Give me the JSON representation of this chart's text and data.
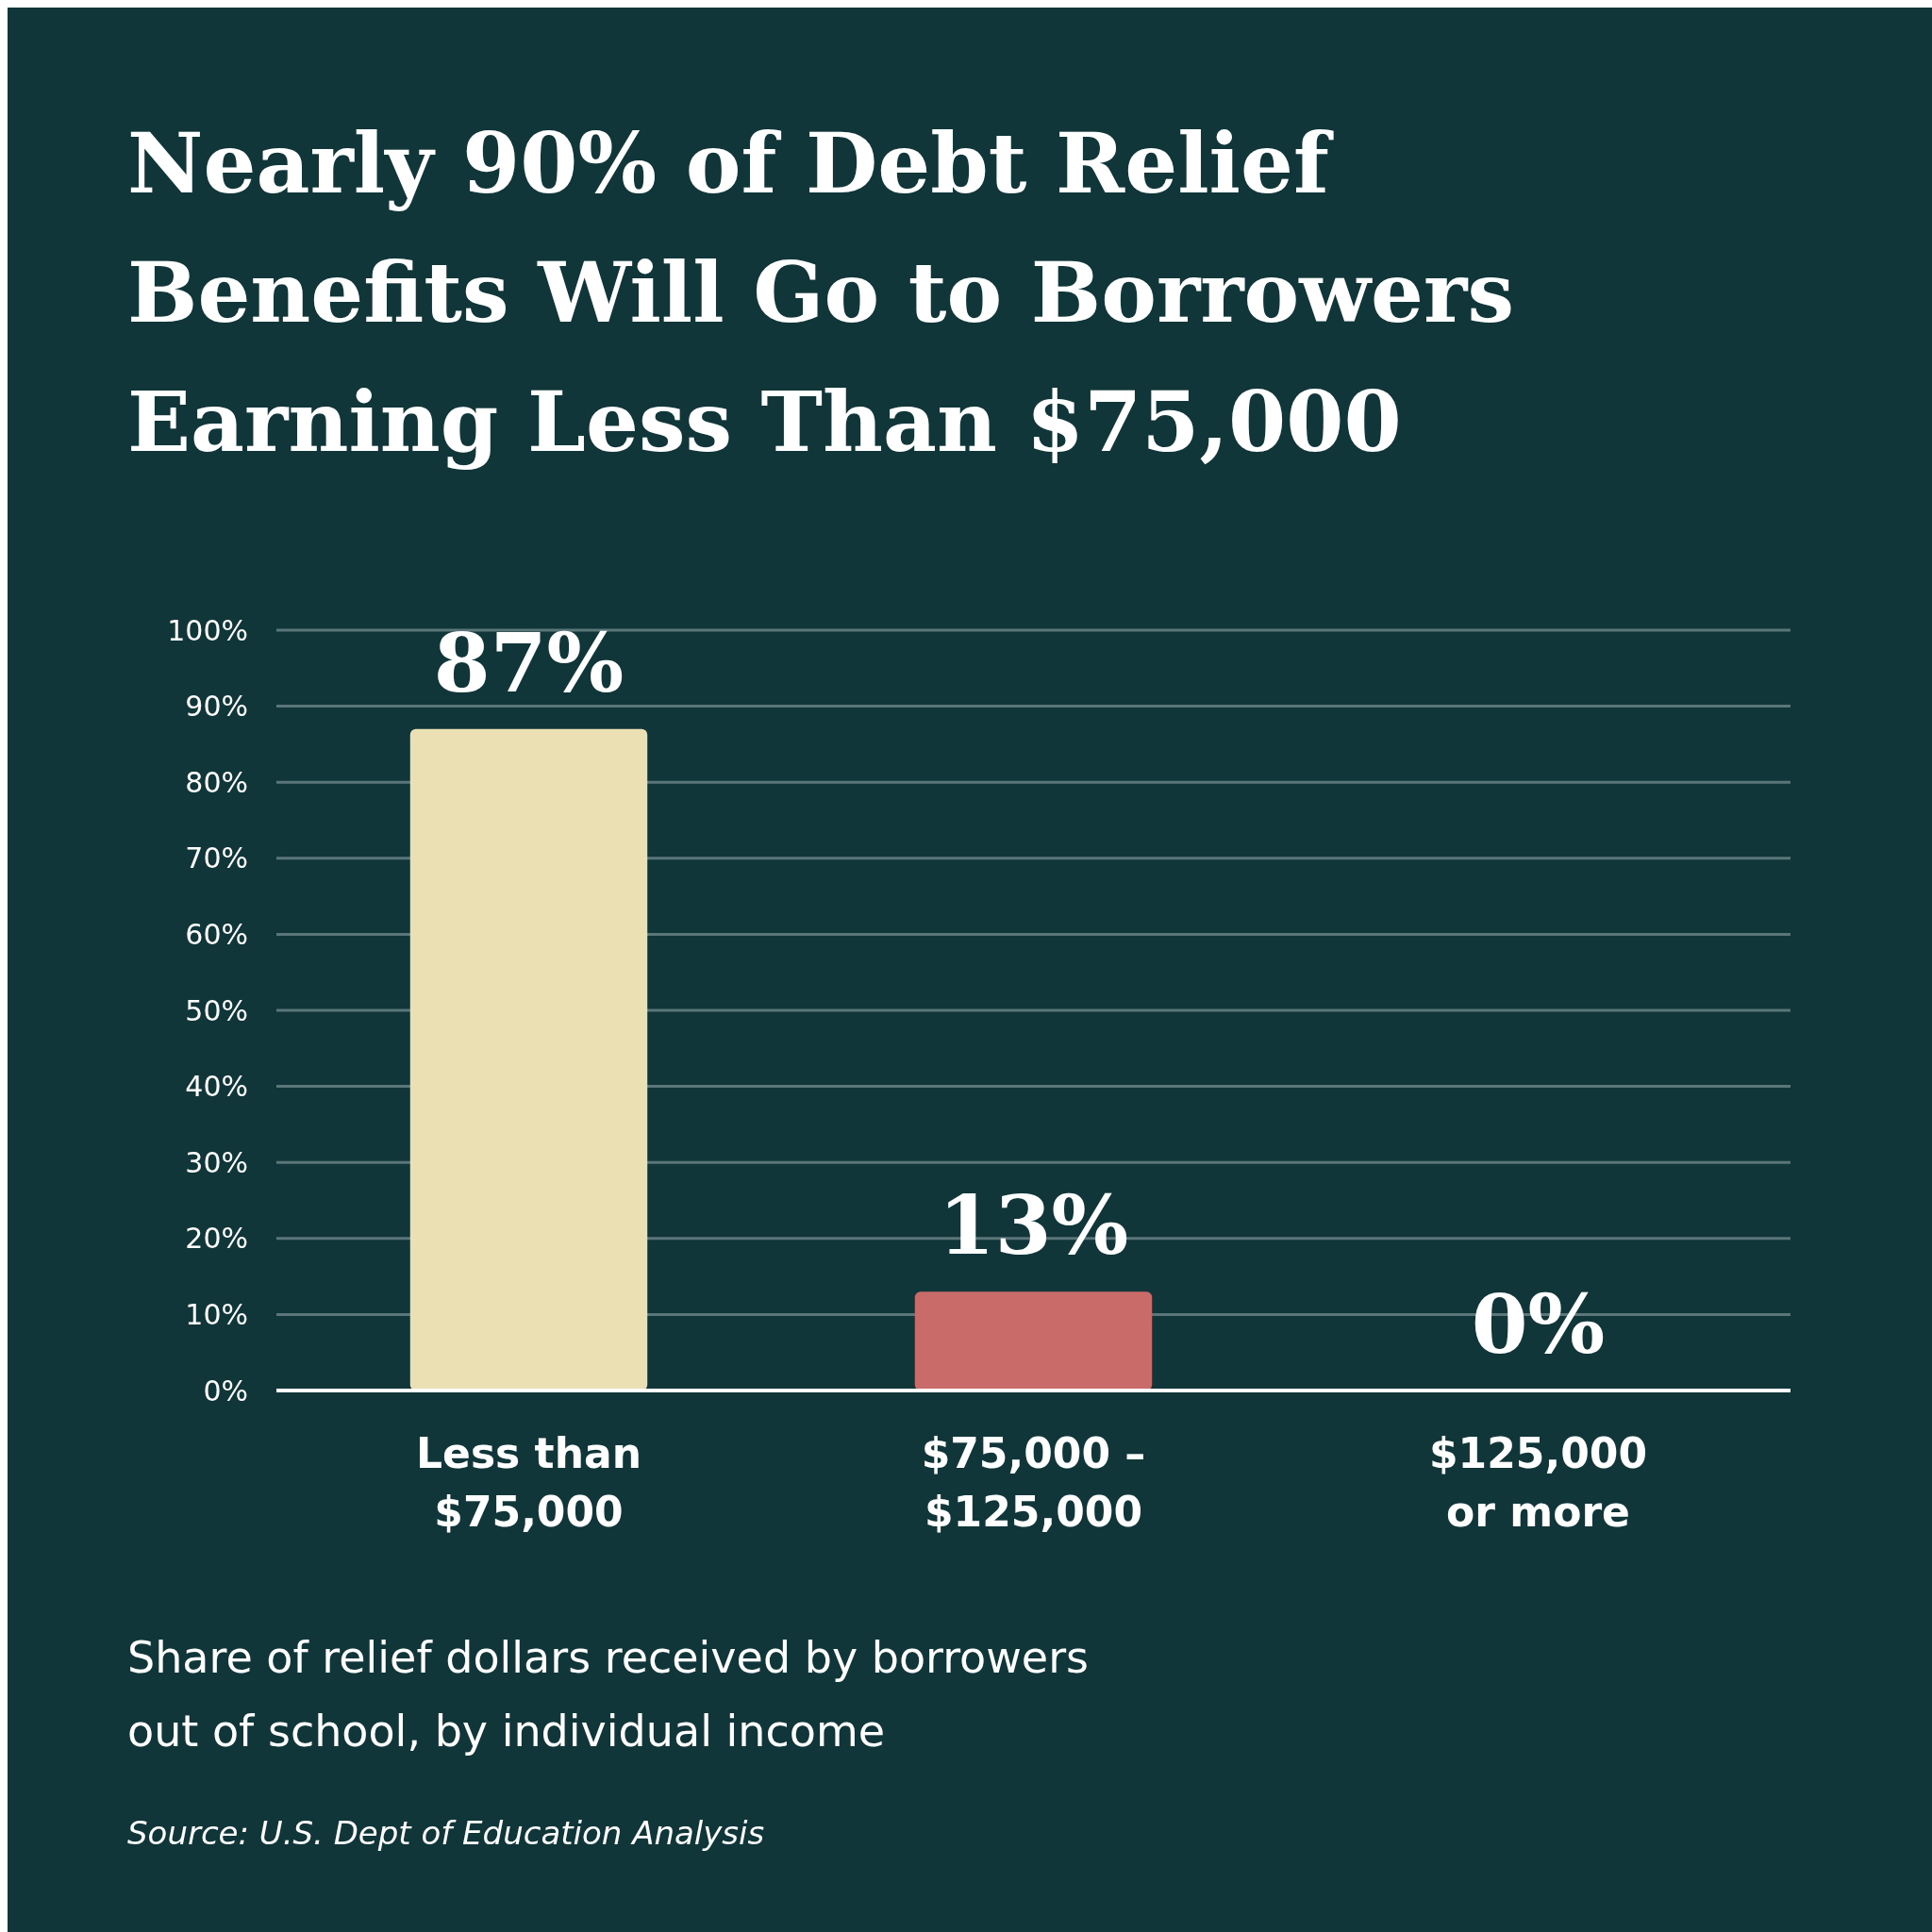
{
  "chart_data": {
    "type": "bar",
    "title": "Nearly 90% of Debt Relief\nBenefits Will Go to Borrowers\nEarning Less Than $75,000",
    "subtitle": "Share of relief dollars received by borrowers\nout of school, by individual income",
    "annotations": [
      "Source: U.S. Dept of Education Analysis"
    ],
    "categories": [
      "Less than\n$75,000",
      "$75,000 –\n$125,000",
      "$125,000\nor more"
    ],
    "values": [
      87,
      13,
      0
    ],
    "colors": [
      "#ebe0b3",
      "#c96b69",
      "#c96b69"
    ],
    "value_labels": [
      "87%",
      "13%",
      "0%"
    ],
    "ylim": [
      0,
      100
    ],
    "yticks": [
      {
        "value": 0,
        "label": "0%"
      },
      {
        "value": 10,
        "label": "10%"
      },
      {
        "value": 20,
        "label": "20%"
      },
      {
        "value": 30,
        "label": "30%"
      },
      {
        "value": 40,
        "label": "40%"
      },
      {
        "value": 50,
        "label": "50%"
      },
      {
        "value": 60,
        "label": "60%"
      },
      {
        "value": 70,
        "label": "70%"
      },
      {
        "value": 80,
        "label": "80%"
      },
      {
        "value": 90,
        "label": "90%"
      },
      {
        "value": 100,
        "label": "100%"
      }
    ],
    "grid": "y"
  }
}
